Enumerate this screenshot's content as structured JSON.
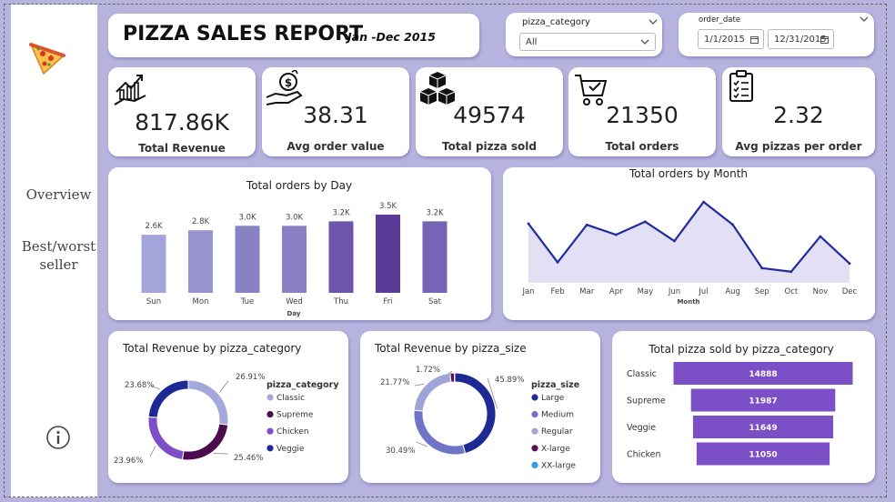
{
  "report": {
    "title": "PIZZA SALES REPORT",
    "subtitle": "Jan -Dec 2015"
  },
  "nav": {
    "overview": "Overview",
    "best_worst_line1": "Best/worst",
    "best_worst_line2": "seller"
  },
  "slicers": {
    "category": {
      "label": "pizza_category",
      "value": "All"
    },
    "date": {
      "label": "order_date",
      "start": "1/1/2015",
      "end": "12/31/2015"
    }
  },
  "kpis": [
    {
      "value": "817.86K",
      "label": "Total Revenue",
      "icon": "revenue-chart-icon"
    },
    {
      "value": "38.31",
      "label": "Avg order value",
      "icon": "money-hand-icon"
    },
    {
      "value": "49574",
      "label": "Total pizza sold",
      "icon": "boxes-icon"
    },
    {
      "value": "21350",
      "label": "Total orders",
      "icon": "cart-icon"
    },
    {
      "value": "2.32",
      "label": "Avg pizzas per order",
      "icon": "clipboard-icon"
    }
  ],
  "colors": {
    "background": "#b6b4de",
    "accent": "#1f2d9c",
    "purple": "#7b4fc6"
  },
  "chart_data": [
    {
      "type": "bar",
      "title": "Total orders by Day",
      "xlabel": "Day",
      "categories": [
        "Sun",
        "Mon",
        "Tue",
        "Wed",
        "Thu",
        "Fri",
        "Sat"
      ],
      "values": [
        2600,
        2800,
        3000,
        3000,
        3200,
        3500,
        3200
      ],
      "labels": [
        "2.6K",
        "2.8K",
        "3.0K",
        "3.0K",
        "3.2K",
        "3.5K",
        "3.2K"
      ],
      "colors": [
        "#a4a6db",
        "#9892cf",
        "#8881c3",
        "#8a80c3",
        "#6f56ad",
        "#5b3a98",
        "#7664b4"
      ],
      "ylim": [
        0,
        3500
      ]
    },
    {
      "type": "area",
      "title": "Total orders by Month",
      "xlabel": "Month",
      "categories": [
        "Jan",
        "Feb",
        "Mar",
        "Apr",
        "May",
        "Jun",
        "Jul",
        "Aug",
        "Sep",
        "Oct",
        "Nov",
        "Dec"
      ],
      "values": [
        1845,
        1685,
        1840,
        1799,
        1853,
        1773,
        1935,
        1841,
        1661,
        1646,
        1792,
        1680
      ],
      "ylim": [
        1600,
        1950
      ]
    },
    {
      "type": "pie",
      "title": "Total Revenue by pizza_category",
      "legend_title": "pizza_category",
      "slices": [
        {
          "name": "Classic",
          "value": 26.91,
          "label": "26.91%",
          "color": "#a4a9dc"
        },
        {
          "name": "Supreme",
          "value": 25.46,
          "label": "25.46%",
          "color": "#4c0a4f"
        },
        {
          "name": "Chicken",
          "value": 23.96,
          "label": "23.96%",
          "color": "#7d4ec8"
        },
        {
          "name": "Veggie",
          "value": 23.68,
          "label": "23.68%",
          "color": "#1d2a94"
        }
      ]
    },
    {
      "type": "pie",
      "title": "Total Revenue by pizza_size",
      "legend_title": "pizza_size",
      "slices": [
        {
          "name": "Large",
          "value": 45.89,
          "label": "45.89%",
          "color": "#1d2a94"
        },
        {
          "name": "Medium",
          "value": 30.49,
          "label": "30.49%",
          "color": "#6f74c6"
        },
        {
          "name": "Regular",
          "value": 21.77,
          "label": "21.77%",
          "color": "#9ea3d8"
        },
        {
          "name": "X-large",
          "value": 1.72,
          "label": "1.72%",
          "color": "#5a0f58"
        },
        {
          "name": "XX-large",
          "value": 0.12,
          "label": "",
          "color": "#2f9ee6"
        }
      ]
    },
    {
      "type": "bar",
      "orientation": "funnel",
      "title": "Total pizza sold by pizza_category",
      "categories": [
        "Classic",
        "Supreme",
        "Veggie",
        "Chicken"
      ],
      "values": [
        14888,
        11987,
        11649,
        11050
      ],
      "color": "#7b4fc6"
    }
  ]
}
